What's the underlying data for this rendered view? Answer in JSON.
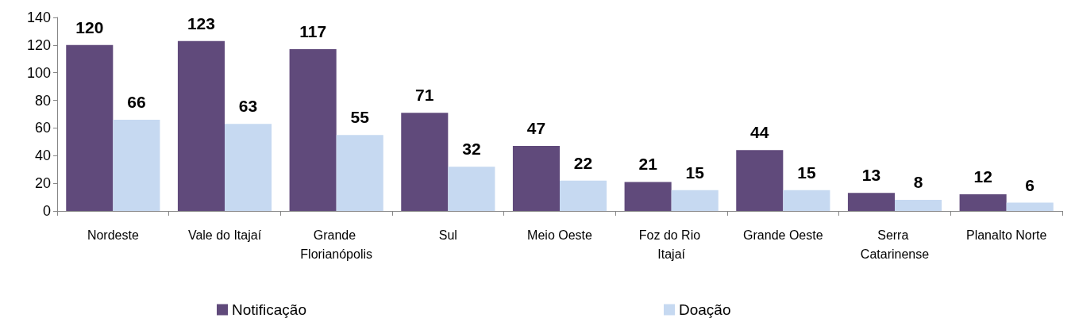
{
  "chart_data": {
    "type": "bar",
    "categories": [
      "Nordeste",
      "Vale do Itajaí",
      "Grande Florianópolis",
      "Sul",
      "Meio Oeste",
      "Foz do Rio Itajaí",
      "Grande Oeste",
      "Serra Catarinense",
      "Planalto Norte"
    ],
    "series": [
      {
        "name": "Notificação",
        "color": "#604a7b",
        "values": [
          120,
          123,
          117,
          71,
          47,
          21,
          44,
          13,
          12
        ]
      },
      {
        "name": "Doação",
        "color": "#c6d9f1",
        "values": [
          66,
          63,
          55,
          32,
          22,
          15,
          15,
          8,
          6
        ]
      }
    ],
    "ylim": [
      0,
      140
    ],
    "yticks": [
      0,
      20,
      40,
      60,
      80,
      100,
      120,
      140
    ],
    "data_labels": true,
    "legend": "bottom",
    "grid": false
  }
}
